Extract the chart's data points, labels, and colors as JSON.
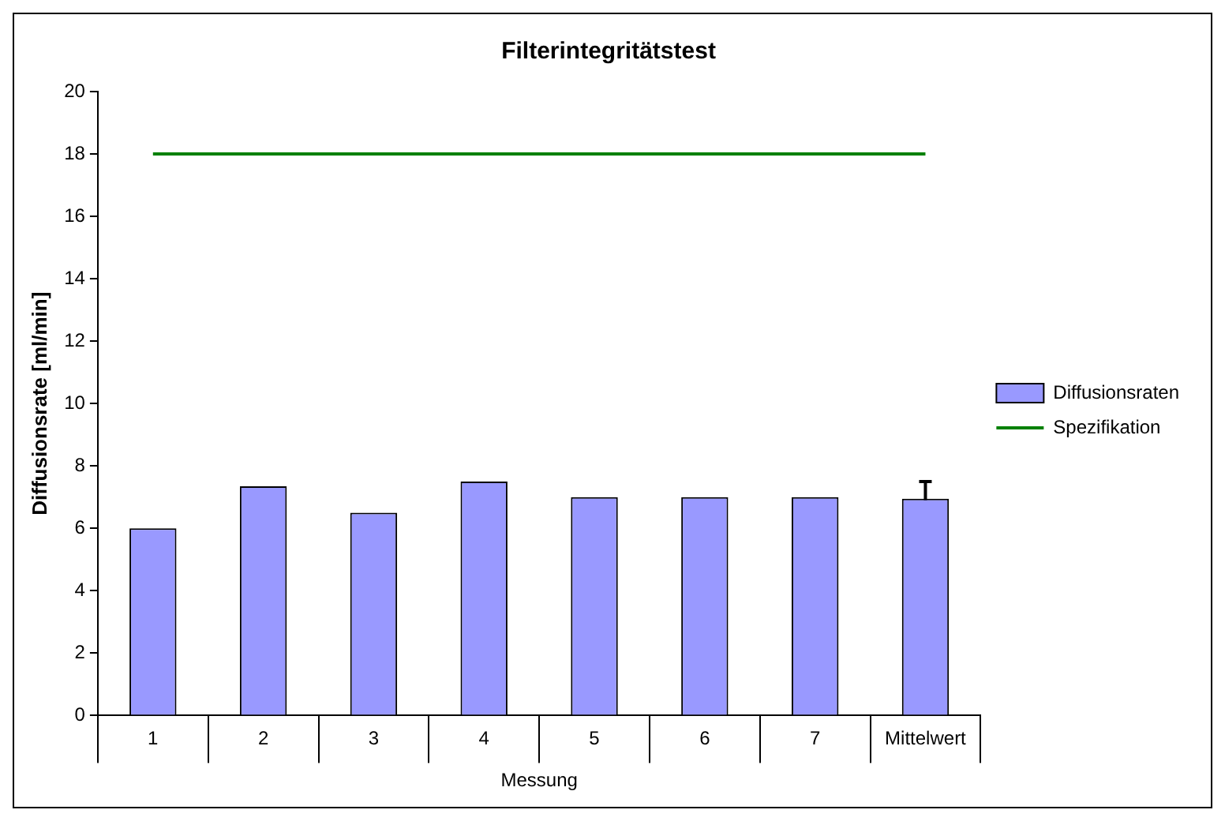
{
  "chart_data": {
    "type": "bar",
    "title": "Filterintegritätstest",
    "xlabel": "Messung",
    "ylabel": "Diffusionsrate [ml/min]",
    "categories": [
      "1",
      "2",
      "3",
      "4",
      "5",
      "6",
      "7",
      "Mittelwert"
    ],
    "series": [
      {
        "name": "Diffusionsraten",
        "color": "#9999ff",
        "values": [
          6.0,
          7.35,
          6.5,
          7.5,
          7.0,
          7.0,
          7.0,
          6.95
        ],
        "errors": [
          null,
          null,
          null,
          null,
          null,
          null,
          null,
          0.55
        ]
      },
      {
        "name": "Spezifikation",
        "type": "line",
        "color": "#008000",
        "values": [
          18,
          18,
          18,
          18,
          18,
          18,
          18,
          18
        ]
      }
    ],
    "ylim": [
      0,
      20
    ],
    "yticks": [
      0,
      2,
      4,
      6,
      8,
      10,
      12,
      14,
      16,
      18,
      20
    ],
    "grid": false,
    "legend": "right",
    "marker": "none"
  }
}
